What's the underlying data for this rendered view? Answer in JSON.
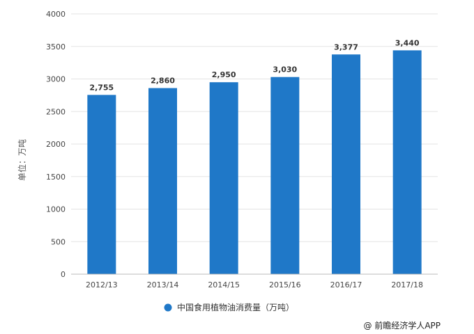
{
  "chart_data": {
    "type": "bar",
    "categories": [
      "2012/13",
      "2013/14",
      "2014/15",
      "2015/16",
      "2016/17",
      "2017/18"
    ],
    "series": [
      {
        "name": "中国食用植物油消费量（万吨）",
        "values": [
          2755,
          2860,
          2950,
          3030,
          3377,
          3440
        ],
        "color": "#1f78c8"
      }
    ],
    "data_labels": [
      "2,755",
      "2,860",
      "2,950",
      "3,030",
      "3,377",
      "3,440"
    ],
    "ylabel": "单位：万吨",
    "ylim": [
      0,
      4000
    ],
    "yticks": [
      0,
      500,
      1000,
      1500,
      2000,
      2500,
      3000,
      3500,
      4000
    ],
    "grid": true,
    "legend_position": "bottom-center"
  },
  "credit": "@ 前瞻经济学人APP",
  "colors": {
    "bar": "#1f78c8",
    "grid": "#e3e3e3",
    "axis": "#bbbbbb"
  }
}
